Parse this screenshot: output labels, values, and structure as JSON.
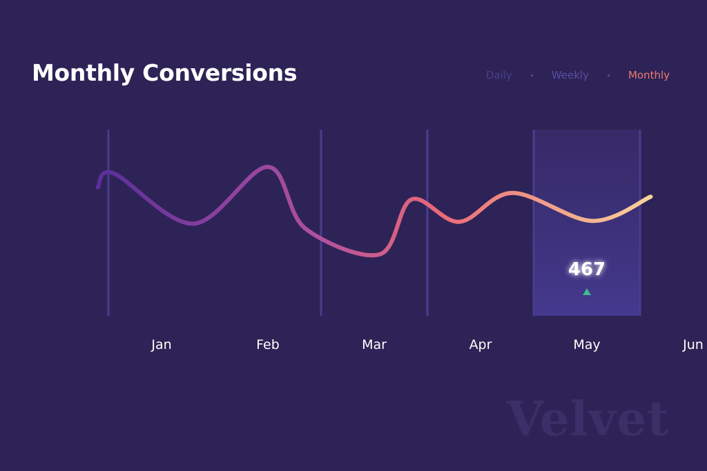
{
  "header": {
    "title": "Monthly Conversions"
  },
  "tabs": [
    {
      "label": "Daily",
      "active": false
    },
    {
      "label": "Weekly",
      "active": false
    },
    {
      "label": "Monthly",
      "active": true
    }
  ],
  "colors": {
    "background": "#2e2356",
    "gridline": "#4a3d8e",
    "highlight": "#3f3583",
    "accent": "#ef7b6f",
    "line_start": "#5a2e9a",
    "line_mid": "#ea6a78",
    "line_end": "#f7d39a",
    "up_arrow": "#3fba8a"
  },
  "chart_data": {
    "type": "line",
    "title": "Monthly Conversions",
    "categories": [
      "Jan",
      "Feb",
      "Mar",
      "Apr",
      "May",
      "Jun"
    ],
    "x": [
      0.4,
      0.55,
      1.3,
      2.0,
      2.35,
      3.05,
      3.35,
      3.8,
      4.3,
      5.05,
      5.6
    ],
    "values": [
      690,
      765,
      495,
      800,
      470,
      330,
      625,
      505,
      660,
      510,
      640
    ],
    "xlim": [
      0.0,
      6.0
    ],
    "ylim": [
      0,
      1000
    ],
    "highlight": {
      "category": "May",
      "value_label": "467",
      "trend": "up"
    },
    "grid": true,
    "xlabel": "",
    "ylabel": ""
  },
  "watermark": {
    "text": "Velvet"
  }
}
